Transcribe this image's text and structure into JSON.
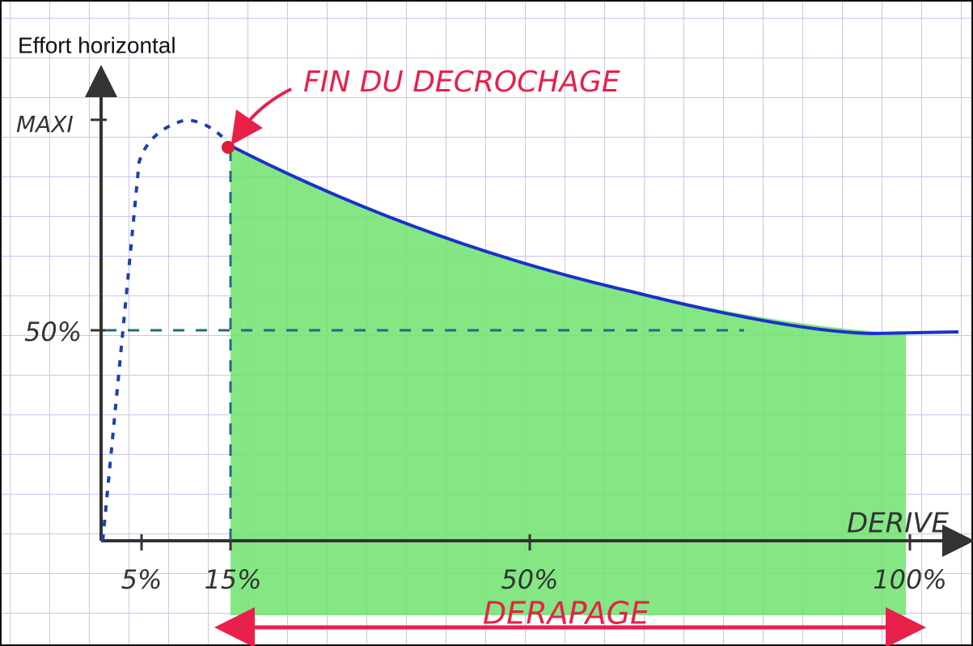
{
  "title": "Effort horizontal",
  "annotation": "FIN DU DECROCHAGE",
  "y_labels": [
    "MAXI",
    "50%"
  ],
  "x_axis_label": "DERIVE",
  "x_labels": [
    "5%",
    "15%",
    "50%",
    "100%"
  ],
  "range_label": "DERAPAGE"
}
